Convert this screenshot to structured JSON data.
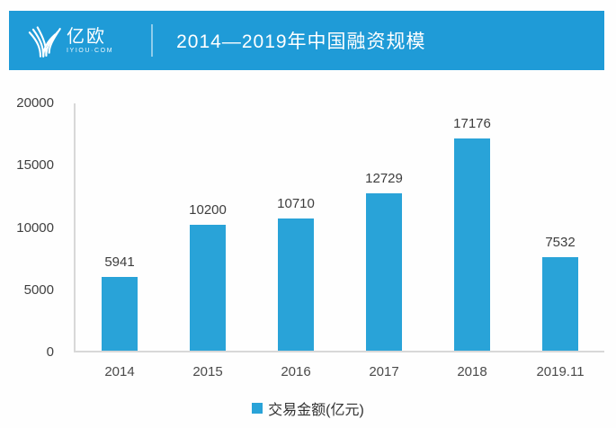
{
  "banner": {
    "logo": {
      "name": "亿欧",
      "domain": "IYIOU·COM"
    },
    "title": "2014—2019年中国融资规模",
    "background": "#1F9BD7"
  },
  "chart_data": {
    "type": "bar",
    "title": "2014—2019年中国融资规模",
    "categories": [
      "2014",
      "2015",
      "2016",
      "2017",
      "2018",
      "2019.11"
    ],
    "values": [
      5941,
      10200,
      10710,
      12729,
      17176,
      7532
    ],
    "series_label": "交易金额(亿元)",
    "legend": [
      "交易金额(亿元)"
    ],
    "legend_position": "bottom",
    "xlabel": "",
    "ylabel": "",
    "ylim": [
      0,
      20000
    ],
    "yticks": [
      0,
      5000,
      10000,
      15000,
      20000
    ],
    "grid": false,
    "data_labels": true,
    "bar_color": "#29A3D8",
    "axis_color": "#D8D8D8",
    "text_color": "#404040"
  }
}
